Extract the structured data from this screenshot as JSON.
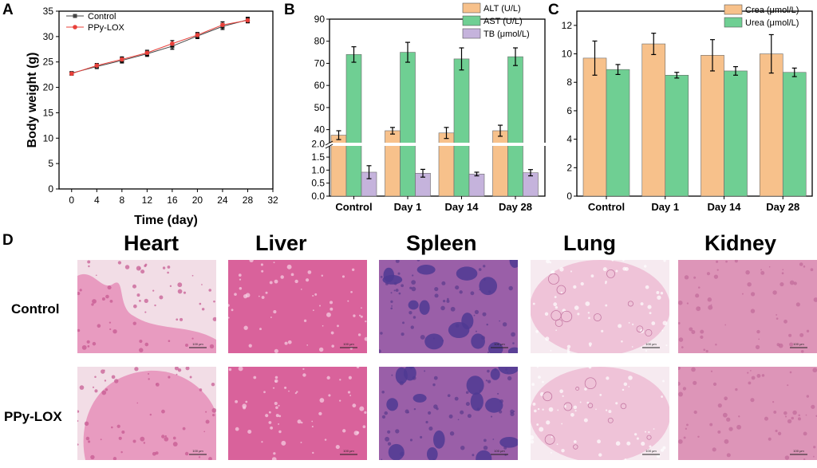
{
  "panels": {
    "A": "A",
    "B": "B",
    "C": "C",
    "D": "D"
  },
  "chart_data": [
    {
      "id": "A",
      "type": "line",
      "xlabel": "Time (day)",
      "ylabel": "Body weight (g)",
      "xlim": [
        -2,
        32
      ],
      "ylim": [
        0,
        35
      ],
      "xticks": [
        0,
        4,
        8,
        12,
        16,
        20,
        24,
        28,
        32
      ],
      "yticks": [
        0,
        5,
        10,
        15,
        20,
        25,
        30,
        35
      ],
      "x": [
        0,
        4,
        8,
        12,
        16,
        20,
        24,
        28
      ],
      "legend_position": "top-left",
      "series": [
        {
          "name": "Control",
          "color": "#444444",
          "marker": "square",
          "values": [
            22.8,
            24.1,
            25.3,
            26.6,
            28.1,
            30.1,
            32.0,
            33.3
          ],
          "errors": [
            0.3,
            0.4,
            0.5,
            0.5,
            0.6,
            0.5,
            0.6,
            0.5
          ]
        },
        {
          "name": "PPy-LOX",
          "color": "#e8403a",
          "marker": "circle",
          "values": [
            22.7,
            24.3,
            25.5,
            26.8,
            28.6,
            30.3,
            32.3,
            33.2
          ],
          "errors": [
            0.3,
            0.4,
            0.5,
            0.5,
            0.6,
            0.5,
            0.6,
            0.5
          ]
        }
      ]
    },
    {
      "id": "B",
      "type": "bar",
      "broken_axis": true,
      "categories": [
        "Control",
        "Day 1",
        "Day 14",
        "Day 28"
      ],
      "upper_yticks": [
        40,
        50,
        60,
        70,
        80,
        90
      ],
      "upper_ylim": [
        33,
        90
      ],
      "lower_yticks": [
        "0.0",
        "0.5",
        "1.0",
        "1.5",
        "2.0"
      ],
      "lower_ylim": [
        0,
        1.9
      ],
      "legend_position": "top-right",
      "series": [
        {
          "name": "ALT (U/L)",
          "color": "#f7c18b",
          "values": [
            37.5,
            39.5,
            38.5,
            39.5
          ],
          "errors": [
            2,
            1.5,
            2.5,
            2.5
          ]
        },
        {
          "name": "AST (U/L)",
          "color": "#6fcf93",
          "values": [
            74,
            75,
            72,
            73
          ],
          "errors": [
            3.5,
            4.5,
            5,
            4
          ]
        },
        {
          "name": "TB (μmol/L)",
          "color": "#c5b3dc",
          "values": [
            0.92,
            0.88,
            0.85,
            0.9
          ],
          "errors": [
            0.25,
            0.15,
            0.07,
            0.12
          ]
        }
      ]
    },
    {
      "id": "C",
      "type": "bar",
      "categories": [
        "Control",
        "Day 1",
        "Day 14",
        "Day 28"
      ],
      "ylim": [
        0,
        13
      ],
      "yticks": [
        0,
        2,
        4,
        6,
        8,
        10,
        12
      ],
      "legend_position": "top-right",
      "series": [
        {
          "name": "Crea (μmol/L)",
          "color": "#f7c18b",
          "values": [
            9.7,
            10.7,
            9.9,
            10.0
          ],
          "errors": [
            1.2,
            0.75,
            1.1,
            1.35
          ]
        },
        {
          "name": "Urea (μmol/L)",
          "color": "#6fcf93",
          "values": [
            8.9,
            8.5,
            8.8,
            8.7
          ],
          "errors": [
            0.35,
            0.2,
            0.3,
            0.3
          ]
        }
      ]
    }
  ],
  "histology": {
    "organs": [
      "Heart",
      "Liver",
      "Spleen",
      "Lung",
      "Kidney"
    ],
    "rows": [
      "Control",
      "PPy-LOX"
    ],
    "scale_bar": "100 μm"
  }
}
